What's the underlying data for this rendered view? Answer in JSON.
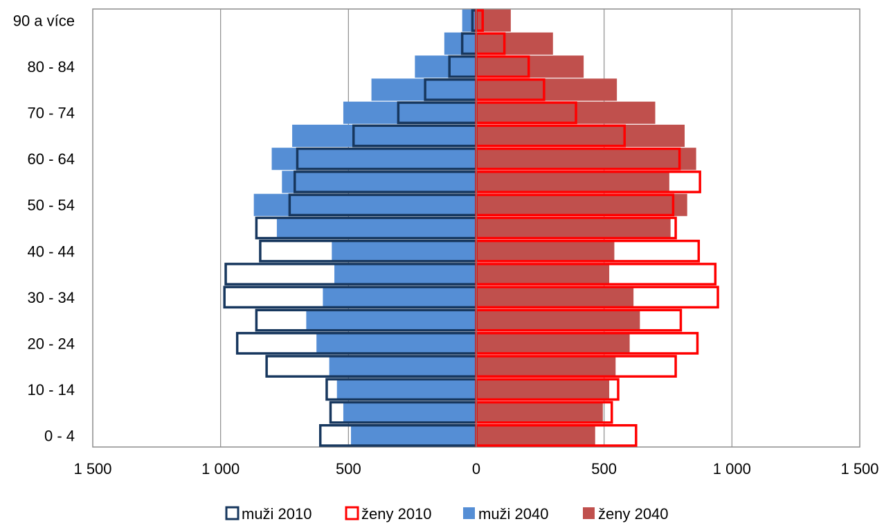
{
  "chart_data": {
    "type": "bar",
    "orientation": "horizontal",
    "layout": "population-pyramid",
    "categories": [
      "0 - 4",
      "5 - 9",
      "10 - 14",
      "15 - 19",
      "20 - 24",
      "25 - 29",
      "30 - 34",
      "35 - 39",
      "40 - 44",
      "45 - 49",
      "50 - 54",
      "55 - 59",
      "60 - 64",
      "65 - 69",
      "70 - 74",
      "75 - 79",
      "80 - 84",
      "85 - 89",
      "90 a více"
    ],
    "category_labels_shown": [
      "0 - 4",
      "10 - 14",
      "20 - 24",
      "30 - 34",
      "40 - 44",
      "50 - 54",
      "60 - 64",
      "70 - 74",
      "80 - 84",
      "90 a více"
    ],
    "x_ticks": [
      -1500,
      -1000,
      -500,
      0,
      500,
      1000,
      1500
    ],
    "x_tick_labels": [
      "1 500",
      "1 000",
      "500",
      "0",
      "500",
      "1 000",
      "1 500"
    ],
    "xlim": [
      -1500,
      1500
    ],
    "grid": "vertical",
    "legend_position": "bottom",
    "series": [
      {
        "name": "muži 2010",
        "side": "left",
        "style": "outline",
        "color": "#17375e",
        "values": [
          610,
          570,
          585,
          820,
          935,
          860,
          985,
          980,
          845,
          860,
          730,
          710,
          700,
          480,
          305,
          200,
          105,
          55,
          15
        ]
      },
      {
        "name": "ženy 2010",
        "side": "right",
        "style": "outline",
        "color": "#ff0000",
        "values": [
          625,
          530,
          555,
          780,
          865,
          800,
          945,
          935,
          870,
          780,
          770,
          875,
          795,
          580,
          390,
          265,
          205,
          110,
          25
        ]
      },
      {
        "name": "muži 2040",
        "side": "left",
        "style": "filled",
        "color": "#558ed5",
        "values": [
          490,
          520,
          545,
          575,
          625,
          665,
          600,
          555,
          565,
          780,
          870,
          760,
          800,
          720,
          520,
          410,
          240,
          125,
          55
        ]
      },
      {
        "name": "ženy 2040",
        "side": "right",
        "style": "filled",
        "color": "#c0504d",
        "values": [
          465,
          495,
          520,
          545,
          600,
          640,
          615,
          520,
          540,
          760,
          825,
          755,
          860,
          815,
          700,
          550,
          420,
          300,
          135
        ]
      }
    ]
  }
}
